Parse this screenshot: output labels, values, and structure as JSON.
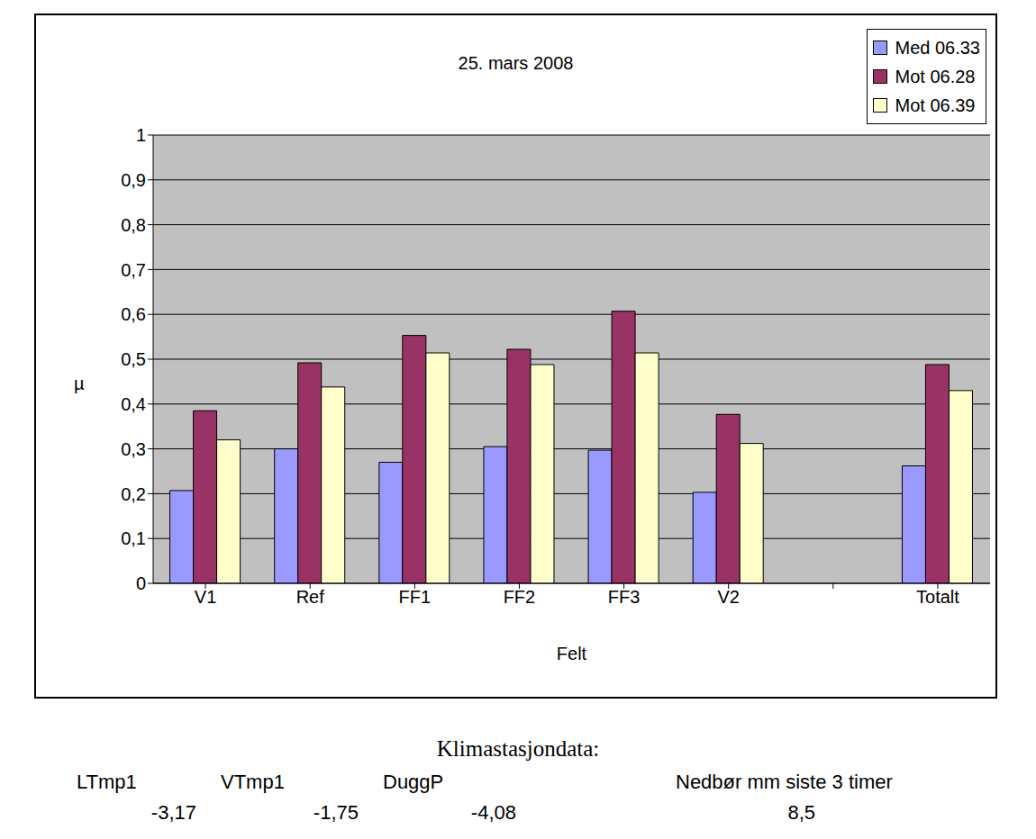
{
  "chart_data": {
    "type": "bar",
    "title": "25. mars 2008",
    "x_label": "Felt",
    "y_label": "µ",
    "categories": [
      "V1",
      "Ref",
      "FF1",
      "FF2",
      "FF3",
      "V2",
      null,
      "Totalt"
    ],
    "series": [
      {
        "name": "Med 06.33",
        "color": "#9999ff",
        "values": [
          0.207,
          0.3,
          0.27,
          0.305,
          0.297,
          0.203,
          null,
          0.262
        ]
      },
      {
        "name": "Mot 06.28",
        "color": "#993366",
        "values": [
          0.385,
          0.492,
          0.553,
          0.522,
          0.607,
          0.377,
          null,
          0.488
        ]
      },
      {
        "name": "Mot 06.39",
        "color": "#ffffcc",
        "values": [
          0.32,
          0.438,
          0.514,
          0.488,
          0.514,
          0.312,
          null,
          0.43
        ]
      }
    ],
    "ylim": [
      0,
      1
    ],
    "yticks": [
      0,
      {
        "value": 0.1,
        "label": "0,1"
      },
      {
        "value": 0.2,
        "label": "0,2"
      },
      {
        "value": 0.3,
        "label": "0,3"
      },
      {
        "value": 0.4,
        "label": "0,4"
      },
      {
        "value": 0.5,
        "label": "0,5"
      },
      {
        "value": 0.6,
        "label": "0,6"
      },
      {
        "value": 0.7,
        "label": "0,7"
      },
      {
        "value": 0.8,
        "label": "0,8"
      },
      {
        "value": 0.9,
        "label": "0,9"
      },
      1
    ],
    "grid": true,
    "legend": "upper right"
  },
  "climate": {
    "title": "Klimastasjondata:",
    "columns": [
      {
        "label": "LTmp1",
        "value": "-3,17"
      },
      {
        "label": "VTmp1",
        "value": "-1,75"
      },
      {
        "label": "DuggP",
        "value": "-4,08"
      },
      {
        "label": "Nedbør mm siste 3 timer",
        "value": "8,5"
      }
    ]
  }
}
